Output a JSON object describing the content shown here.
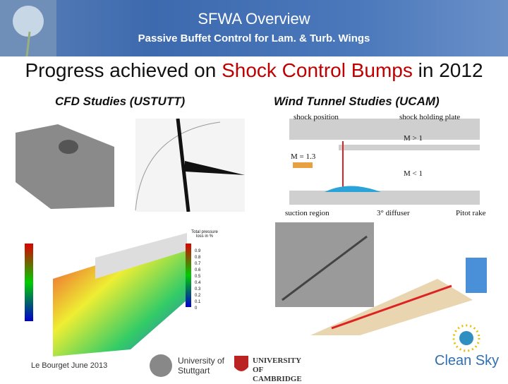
{
  "header": {
    "title": "SFWA Overview",
    "subtitle": "Passive Buffet Control for Lam. & Turb. Wings"
  },
  "heading": {
    "parts": [
      "Progress achieved on ",
      "Shock Control Bumps",
      " in 2012"
    ]
  },
  "columns": [
    {
      "title": "CFD Studies (USTUTT)",
      "figure_labels": [
        "Total pressure loss in %"
      ],
      "colorbar_ticks": [
        "0.9",
        "0.8",
        "0.7",
        "0.6",
        "0.5",
        "0.4",
        "0.3",
        "0.2",
        "0.1",
        "0"
      ]
    },
    {
      "title": "Wind Tunnel Studies (UCAM)",
      "figure_labels": [
        "shock position",
        "shock holding plate",
        "M > 1",
        "M = 1.3",
        "M < 1",
        "suction region",
        "3° diffuser",
        "Pitot rake"
      ]
    }
  ],
  "footer": {
    "text": "Le Bourget June 2013",
    "logos": [
      "University of Stuttgart",
      "UNIVERSITY OF CAMBRIDGE",
      "Clean Sky"
    ]
  }
}
